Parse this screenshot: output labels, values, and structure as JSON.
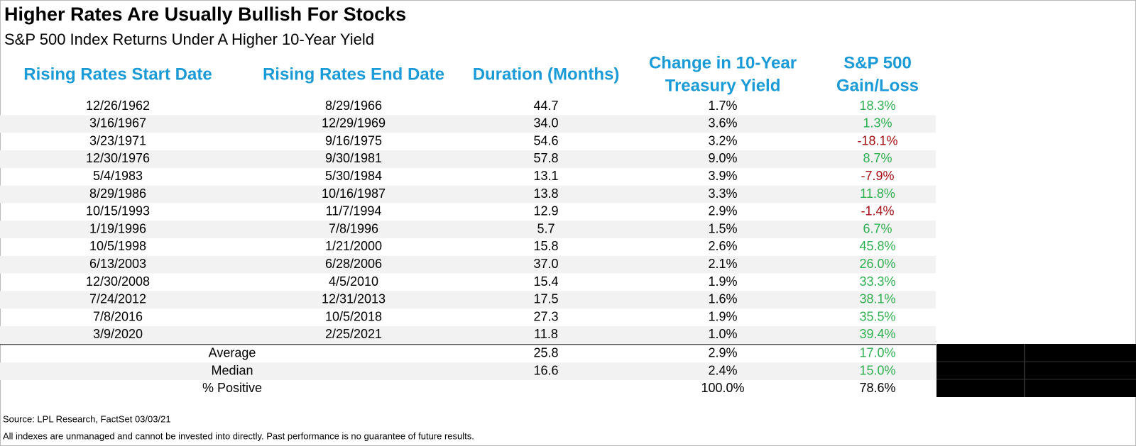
{
  "header": {
    "title": "Higher Rates Are Usually Bullish For Stocks",
    "subtitle": "S&P 500 Index Returns Under A Higher 10-Year Yield"
  },
  "table": {
    "columns": [
      [
        "Rising Rates Start Date"
      ],
      [
        "Rising Rates End Date"
      ],
      [
        "Duration (Months)"
      ],
      [
        "Change in 10-Year",
        "Treasury Yield"
      ],
      [
        "S&P 500",
        "Gain/Loss"
      ]
    ],
    "rows": [
      [
        "12/26/1962",
        "8/29/1966",
        "44.7",
        "1.7%",
        "18.3%"
      ],
      [
        "3/16/1967",
        "12/29/1969",
        "34.0",
        "3.6%",
        "1.3%"
      ],
      [
        "3/23/1971",
        "9/16/1975",
        "54.6",
        "3.2%",
        "-18.1%"
      ],
      [
        "12/30/1976",
        "9/30/1981",
        "57.8",
        "9.0%",
        "8.7%"
      ],
      [
        "5/4/1983",
        "5/30/1984",
        "13.1",
        "3.9%",
        "-7.9%"
      ],
      [
        "8/29/1986",
        "10/16/1987",
        "13.8",
        "3.3%",
        "11.8%"
      ],
      [
        "10/15/1993",
        "11/7/1994",
        "12.9",
        "2.9%",
        "-1.4%"
      ],
      [
        "1/19/1996",
        "7/8/1996",
        "5.7",
        "1.5%",
        "6.7%"
      ],
      [
        "10/5/1998",
        "1/21/2000",
        "15.8",
        "2.6%",
        "45.8%"
      ],
      [
        "6/13/2003",
        "6/28/2006",
        "37.0",
        "2.1%",
        "26.0%"
      ],
      [
        "12/30/2008",
        "4/5/2010",
        "15.4",
        "1.9%",
        "33.3%"
      ],
      [
        "7/24/2012",
        "12/31/2013",
        "17.5",
        "1.6%",
        "38.1%"
      ],
      [
        "7/8/2016",
        "10/5/2018",
        "27.3",
        "1.9%",
        "35.5%"
      ],
      [
        "3/9/2020",
        "2/25/2021",
        "11.8",
        "1.0%",
        "39.4%"
      ]
    ],
    "summary": [
      {
        "label": "Average",
        "duration": "25.8",
        "yield": "2.9%",
        "gain": "17.0%",
        "color": "#2fb050"
      },
      {
        "label": "Median",
        "duration": "16.6",
        "yield": "2.4%",
        "gain": "15.0%",
        "color": "#2fb050"
      },
      {
        "label": "% Positive",
        "yield": "100.0%",
        "gain": "78.6%",
        "color": "#000000"
      }
    ]
  },
  "footer": {
    "source": "Source: LPL Research, FactSet 03/03/21",
    "disclaimer": "All indexes are unmanaged and cannot be invested into directly. Past performance is no guarantee of future results."
  }
}
